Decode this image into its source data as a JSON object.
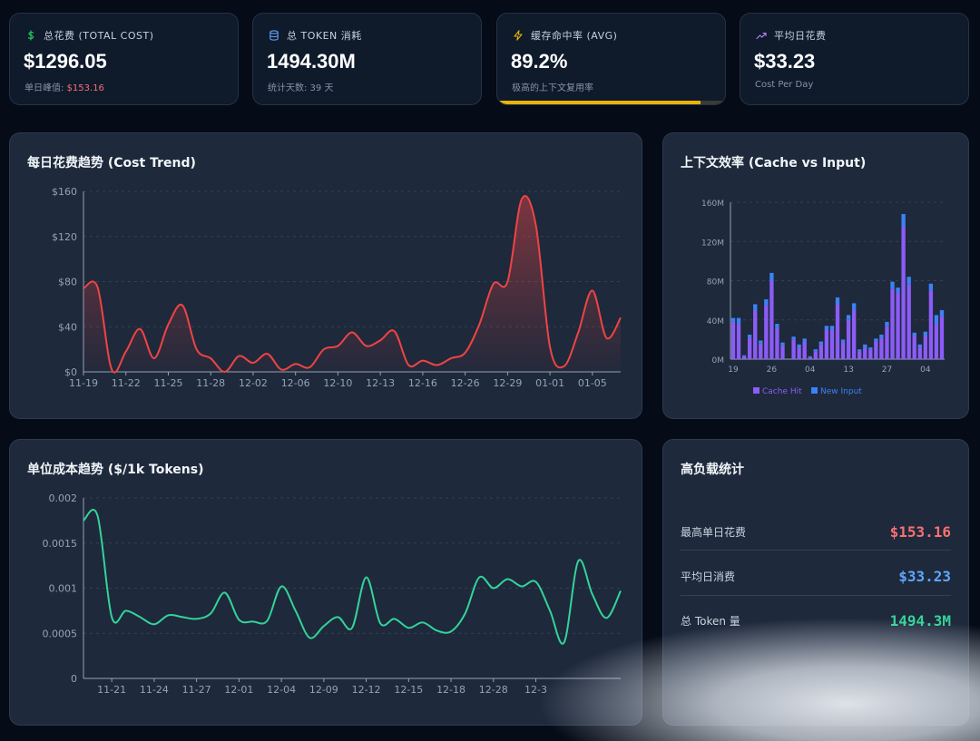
{
  "stats": [
    {
      "label": "总花费 (TOTAL COST)",
      "value": "$1296.05",
      "sub_prefix": "单日峰值: ",
      "sub_peak": "$153.16",
      "icon": "dollar-icon",
      "icon_color": "#22c55e"
    },
    {
      "label": "总 TOKEN 消耗",
      "value": "1494.30M",
      "sub": "统计天数: 39 天",
      "icon": "database-icon",
      "icon_color": "#60a5fa"
    },
    {
      "label": "缓存命中率 (AVG)",
      "value": "89.2%",
      "sub": "极高的上下文复用率",
      "icon": "lightning-icon",
      "icon_color": "#eab308",
      "progress": 0.892
    },
    {
      "label": "平均日花费",
      "value": "$33.23",
      "sub": "Cost Per Day",
      "icon": "trend-up-icon",
      "icon_color": "#c084fc"
    }
  ],
  "cost_trend": {
    "title": "每日花费趋势 (Cost Trend)"
  },
  "cache_chart": {
    "title": "上下文效率 (Cache vs Input)"
  },
  "unit_cost": {
    "title": "单位成本趋势 ($/1k Tokens)"
  },
  "high_load": {
    "title": "高负载统计",
    "rows": [
      {
        "label": "最高单日花费",
        "value": "$153.16",
        "color": "#f87171"
      },
      {
        "label": "平均日消费",
        "value": "$33.23",
        "color": "#60a5fa"
      },
      {
        "label": "总 Token 量",
        "value": "1494.3M",
        "color": "#34d399"
      }
    ]
  },
  "chart_data": [
    {
      "type": "line",
      "title": "每日花费趋势 (Cost Trend)",
      "color": "#ef4444",
      "ylim": [
        0,
        160
      ],
      "yticks": [
        0,
        40,
        80,
        120,
        160
      ],
      "ytick_labels": [
        "$0",
        "$40",
        "$80",
        "$120",
        "$160"
      ],
      "xtick_labels": [
        "11-19",
        "11-22",
        "11-25",
        "11-28",
        "12-02",
        "12-06",
        "12-10",
        "12-13",
        "12-16",
        "12-26",
        "12-29",
        "01-01",
        "01-05"
      ],
      "xtick_index": [
        0,
        3,
        6,
        9,
        12,
        15,
        18,
        21,
        24,
        27,
        30,
        33,
        36
      ],
      "values": [
        74,
        75,
        2,
        18,
        38,
        12,
        42,
        59,
        20,
        12,
        0,
        14,
        8,
        16,
        2,
        7,
        4,
        20,
        23,
        35,
        23,
        28,
        36,
        6,
        10,
        6,
        12,
        17,
        42,
        78,
        80,
        153,
        130,
        22,
        5,
        35,
        72,
        30,
        48
      ]
    },
    {
      "type": "bar",
      "title": "上下文效率 (Cache vs Input)",
      "stacked": true,
      "ylim": [
        0,
        160
      ],
      "yticks": [
        0,
        40,
        80,
        120,
        160
      ],
      "ytick_labels": [
        "0M",
        "40M",
        "80M",
        "120M",
        "160M"
      ],
      "xtick_labels": [
        "19",
        "26",
        "04",
        "13",
        "27",
        "04"
      ],
      "xtick_index": [
        0,
        7,
        14,
        21,
        28,
        35
      ],
      "series": [
        {
          "name": "Cache Hit",
          "color": "#8b5cf6",
          "values": [
            38,
            36,
            3,
            22,
            50,
            16,
            55,
            80,
            32,
            14,
            0,
            20,
            12,
            18,
            2,
            8,
            15,
            30,
            30,
            56,
            17,
            40,
            50,
            8,
            12,
            10,
            18,
            22,
            34,
            72,
            68,
            135,
            76,
            24,
            12,
            24,
            70,
            36,
            44
          ]
        },
        {
          "name": "New Input",
          "color": "#3b82f6",
          "values": [
            4,
            6,
            1,
            3,
            6,
            3,
            6,
            8,
            4,
            3,
            0,
            3,
            3,
            3,
            1,
            2,
            3,
            4,
            4,
            7,
            3,
            5,
            7,
            2,
            3,
            2,
            3,
            3,
            4,
            7,
            5,
            13,
            8,
            3,
            3,
            4,
            7,
            9,
            6
          ]
        }
      ]
    },
    {
      "type": "line",
      "title": "单位成本趋势 ($/1k Tokens)",
      "color": "#34d399",
      "ylim": [
        0,
        0.002
      ],
      "yticks": [
        0,
        0.0005,
        0.001,
        0.0015,
        0.002
      ],
      "ytick_labels": [
        "0",
        "0.0005",
        "0.001",
        "0.0015",
        "0.002"
      ],
      "xtick_labels": [
        "11-21",
        "11-24",
        "11-27",
        "12-01",
        "12-04",
        "12-09",
        "12-12",
        "12-15",
        "12-18",
        "12-28",
        "12-3"
      ],
      "xtick_index": [
        2,
        5,
        8,
        11,
        14,
        17,
        20,
        23,
        26,
        29,
        32
      ],
      "values": [
        0.00175,
        0.0018,
        0.00068,
        0.00075,
        0.00068,
        0.0006,
        0.0007,
        0.00068,
        0.00066,
        0.00072,
        0.00095,
        0.00065,
        0.00063,
        0.00064,
        0.00102,
        0.00075,
        0.00045,
        0.00058,
        0.00068,
        0.00056,
        0.00112,
        0.00061,
        0.00066,
        0.00056,
        0.00062,
        0.00053,
        0.00052,
        0.00072,
        0.00112,
        0.001,
        0.0011,
        0.00102,
        0.00107,
        0.00075,
        0.0004,
        0.0013,
        0.00093,
        0.00067,
        0.00097
      ]
    }
  ]
}
